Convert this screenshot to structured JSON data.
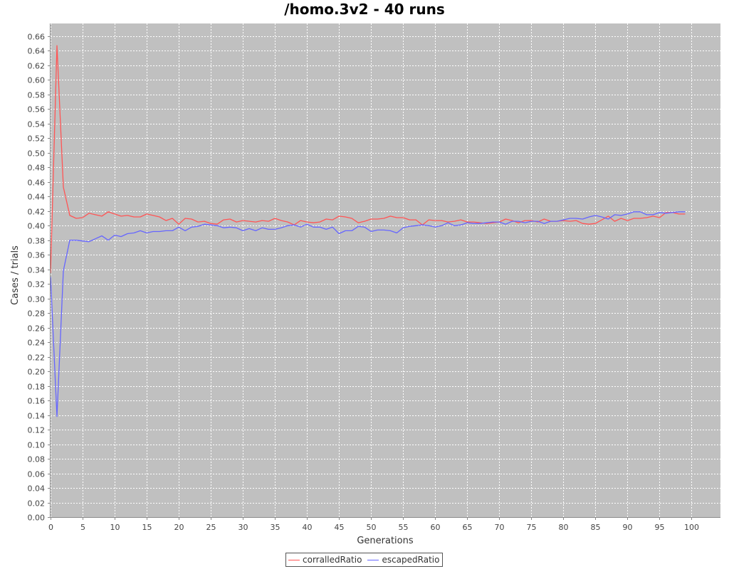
{
  "chart_data": {
    "type": "line",
    "title": "/homo.3v2 - 40 runs",
    "xlabel": "Generations",
    "ylabel": "Cases / trials",
    "xlim": [
      0,
      104.5
    ],
    "ylim": [
      0,
      0.6775
    ],
    "x_ticks": [
      0,
      5,
      10,
      15,
      20,
      25,
      30,
      35,
      40,
      45,
      50,
      55,
      60,
      65,
      70,
      75,
      80,
      85,
      90,
      95,
      100
    ],
    "y_ticks": [
      "0.00",
      "0.02",
      "0.04",
      "0.06",
      "0.08",
      "0.10",
      "0.12",
      "0.14",
      "0.16",
      "0.18",
      "0.20",
      "0.22",
      "0.24",
      "0.26",
      "0.28",
      "0.30",
      "0.32",
      "0.34",
      "0.36",
      "0.38",
      "0.40",
      "0.42",
      "0.44",
      "0.46",
      "0.48",
      "0.50",
      "0.52",
      "0.54",
      "0.56",
      "0.58",
      "0.60",
      "0.62",
      "0.64",
      "0.66"
    ],
    "grid": true,
    "legend_position": "bottom",
    "background": "#c0c0c0",
    "series": [
      {
        "name": "corralledRatio",
        "color": "#ff5555",
        "values": [
          0.335,
          0.647,
          0.453,
          0.414,
          0.41,
          0.411,
          0.417,
          0.415,
          0.413,
          0.419,
          0.416,
          0.413,
          0.414,
          0.412,
          0.412,
          0.416,
          0.414,
          0.412,
          0.407,
          0.41,
          0.402,
          0.41,
          0.409,
          0.405,
          0.406,
          0.403,
          0.402,
          0.408,
          0.409,
          0.405,
          0.407,
          0.406,
          0.405,
          0.407,
          0.406,
          0.41,
          0.407,
          0.405,
          0.401,
          0.407,
          0.405,
          0.404,
          0.405,
          0.409,
          0.408,
          0.413,
          0.412,
          0.41,
          0.404,
          0.406,
          0.409,
          0.409,
          0.41,
          0.413,
          0.411,
          0.411,
          0.408,
          0.408,
          0.401,
          0.408,
          0.407,
          0.407,
          0.405,
          0.406,
          0.408,
          0.405,
          0.405,
          0.404,
          0.403,
          0.404,
          0.405,
          0.409,
          0.407,
          0.404,
          0.407,
          0.407,
          0.405,
          0.409,
          0.406,
          0.406,
          0.407,
          0.406,
          0.407,
          0.403,
          0.402,
          0.403,
          0.408,
          0.413,
          0.406,
          0.41,
          0.407,
          0.41,
          0.41,
          0.411,
          0.413,
          0.411,
          0.418,
          0.418,
          0.416,
          0.416
        ]
      },
      {
        "name": "escapedRatio",
        "color": "#6666ff",
        "values": [
          0.33,
          0.138,
          0.338,
          0.38,
          0.38,
          0.379,
          0.378,
          0.382,
          0.386,
          0.38,
          0.387,
          0.385,
          0.389,
          0.39,
          0.393,
          0.39,
          0.392,
          0.392,
          0.393,
          0.393,
          0.398,
          0.393,
          0.398,
          0.399,
          0.402,
          0.401,
          0.4,
          0.397,
          0.398,
          0.397,
          0.393,
          0.396,
          0.393,
          0.397,
          0.395,
          0.395,
          0.397,
          0.4,
          0.401,
          0.398,
          0.402,
          0.398,
          0.398,
          0.395,
          0.398,
          0.389,
          0.393,
          0.393,
          0.399,
          0.398,
          0.392,
          0.394,
          0.394,
          0.393,
          0.39,
          0.397,
          0.399,
          0.4,
          0.401,
          0.4,
          0.398,
          0.4,
          0.404,
          0.4,
          0.401,
          0.404,
          0.403,
          0.403,
          0.404,
          0.405,
          0.405,
          0.402,
          0.406,
          0.406,
          0.404,
          0.406,
          0.406,
          0.403,
          0.406,
          0.406,
          0.408,
          0.41,
          0.41,
          0.409,
          0.412,
          0.414,
          0.412,
          0.409,
          0.415,
          0.414,
          0.416,
          0.419,
          0.419,
          0.415,
          0.415,
          0.418,
          0.417,
          0.418,
          0.419,
          0.419
        ]
      }
    ]
  }
}
